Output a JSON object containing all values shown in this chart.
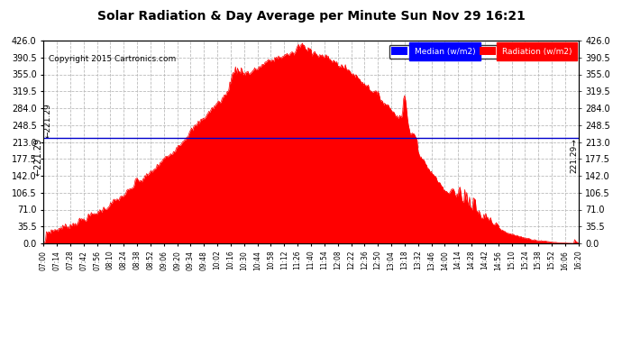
{
  "title": "Solar Radiation & Day Average per Minute Sun Nov 29 16:21",
  "copyright": "Copyright 2015 Cartronics.com",
  "median_value": 221.29,
  "y_ticks": [
    0.0,
    35.5,
    71.0,
    106.5,
    142.0,
    177.5,
    213.0,
    248.5,
    284.0,
    319.5,
    355.0,
    390.5,
    426.0
  ],
  "y_max": 426.0,
  "y_min": 0.0,
  "background_color": "#ffffff",
  "plot_bg_color": "#ffffff",
  "grid_color": "#bbbbbb",
  "bar_color": "#ff0000",
  "median_line_color": "#0000cc",
  "title_color": "#000000",
  "legend_median_bg": "#0000ff",
  "legend_radiation_bg": "#ff0000",
  "legend_text_color": "#ffffff",
  "x_tick_labels": [
    "07:00",
    "07:14",
    "07:28",
    "07:42",
    "07:56",
    "08:10",
    "08:24",
    "08:38",
    "08:52",
    "09:06",
    "09:20",
    "09:34",
    "09:48",
    "10:02",
    "10:16",
    "10:30",
    "10:44",
    "10:58",
    "11:12",
    "11:26",
    "11:40",
    "11:54",
    "12:08",
    "12:22",
    "12:36",
    "12:50",
    "13:04",
    "13:18",
    "13:32",
    "13:46",
    "14:00",
    "14:14",
    "14:28",
    "14:42",
    "14:56",
    "15:10",
    "15:24",
    "15:38",
    "15:52",
    "16:06",
    "16:20"
  ]
}
